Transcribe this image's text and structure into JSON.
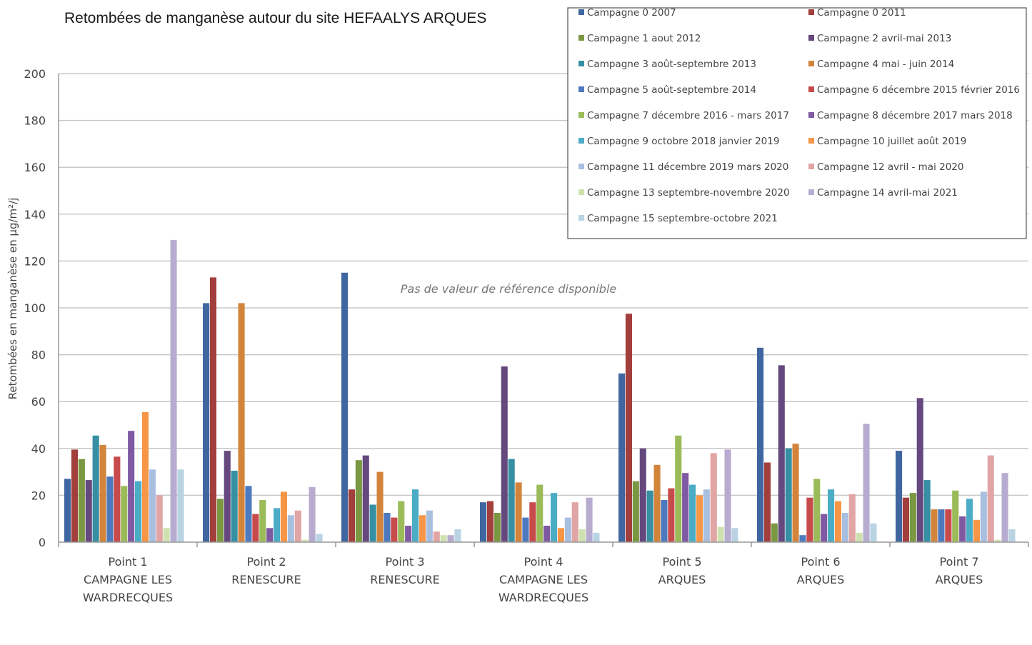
{
  "chart_data": {
    "type": "bar",
    "title": "Retombées de manganèse autour du site HEFAALYS ARQUES",
    "ylabel": "Retombées en manganèse en  µg/m²/j",
    "xlabel": "",
    "ylim": [
      0,
      200
    ],
    "yticks": [
      "0",
      "20",
      "40",
      "60",
      "80",
      "100",
      "120",
      "140",
      "160",
      "180",
      "200"
    ],
    "annotation": "Pas de valeur de référence disponible",
    "grid": true,
    "legend_position": "top-right",
    "categories": [
      [
        "Point 1",
        "CAMPAGNE LES",
        "WARDRECQUES"
      ],
      [
        "Point 2",
        "RENESCURE"
      ],
      [
        "Point 3",
        "RENESCURE"
      ],
      [
        "Point 4",
        "CAMPAGNE LES",
        "WARDRECQUES"
      ],
      [
        "Point 5",
        "ARQUES"
      ],
      [
        "Point 6",
        "ARQUES"
      ],
      [
        "Point 7",
        "ARQUES"
      ]
    ],
    "series": [
      {
        "name": "Campagne 0 2007",
        "color": "#3f66a0",
        "values": [
          27,
          102,
          115,
          17,
          72,
          83,
          39
        ]
      },
      {
        "name": "Campagne 0 2011",
        "color": "#a23e3c",
        "values": [
          39.5,
          113,
          22.5,
          17.5,
          97.5,
          34,
          19
        ]
      },
      {
        "name": "Campagne 1 aout 2012",
        "color": "#7a9841",
        "values": [
          35.5,
          18.5,
          35,
          12.5,
          26,
          8,
          21
        ]
      },
      {
        "name": "Campagne 2 avril-mai 2013",
        "color": "#65497e",
        "values": [
          26.5,
          39,
          37,
          75,
          40,
          75.5,
          61.5
        ]
      },
      {
        "name": "Campagne 3  août-septembre 2013",
        "color": "#368fa2",
        "values": [
          45.5,
          30.5,
          16,
          35.5,
          22,
          40,
          26.5
        ]
      },
      {
        "name": "Campagne 4 mai - juin 2014",
        "color": "#d3843b",
        "values": [
          41.5,
          102,
          30,
          25.5,
          33,
          42,
          14
        ]
      },
      {
        "name": "Campagne 5 août-septembre 2014",
        "color": "#4d79bf",
        "values": [
          28,
          24,
          12.5,
          10.5,
          18,
          3,
          14
        ]
      },
      {
        "name": "Campagne 6 décembre 2015 février 2016",
        "color": "#c84b4b",
        "values": [
          36.5,
          12,
          10.5,
          17,
          23,
          19,
          14
        ]
      },
      {
        "name": "Campagne 7 décembre 2016 - mars 2017",
        "color": "#9bbb59",
        "values": [
          24,
          18,
          17.5,
          24.5,
          45.5,
          27,
          22
        ]
      },
      {
        "name": "Campagne 8 décembre 2017 mars 2018",
        "color": "#7f5aa2",
        "values": [
          47.5,
          6,
          7,
          7,
          29.5,
          12,
          11
        ]
      },
      {
        "name": "Campagne 9 octobre 2018 janvier 2019",
        "color": "#4bacc6",
        "values": [
          26,
          14.5,
          22.5,
          21,
          24.5,
          22.5,
          18.5
        ]
      },
      {
        "name": "Campagne 10 juillet août 2019",
        "color": "#f79646",
        "values": [
          55.5,
          21.5,
          11.5,
          6,
          20,
          17.5,
          9.5
        ]
      },
      {
        "name": "Campagne 11 décembre 2019 mars 2020",
        "color": "#a9bfe0",
        "values": [
          31,
          11.5,
          13.5,
          10.5,
          22.5,
          12.5,
          21.5
        ]
      },
      {
        "name": "Campagne 12 avril - mai 2020",
        "color": "#e0a5a4",
        "values": [
          20,
          13.5,
          4.5,
          17,
          38,
          20.5,
          37
        ]
      },
      {
        "name": "Campagne 13 septembre-novembre 2020",
        "color": "#cfe1b0",
        "values": [
          6,
          1,
          3,
          5.5,
          6.5,
          4,
          1
        ]
      },
      {
        "name": "Campagne 14 avril-mai 2021",
        "color": "#b7acd0",
        "values": [
          129,
          23.5,
          3,
          19,
          39.5,
          50.5,
          29.5
        ]
      },
      {
        "name": "Campagne 15 septembre-octobre 2021",
        "color": "#b9d3e3",
        "values": [
          31,
          3.5,
          5.5,
          4,
          6,
          8,
          5.5
        ]
      }
    ]
  }
}
